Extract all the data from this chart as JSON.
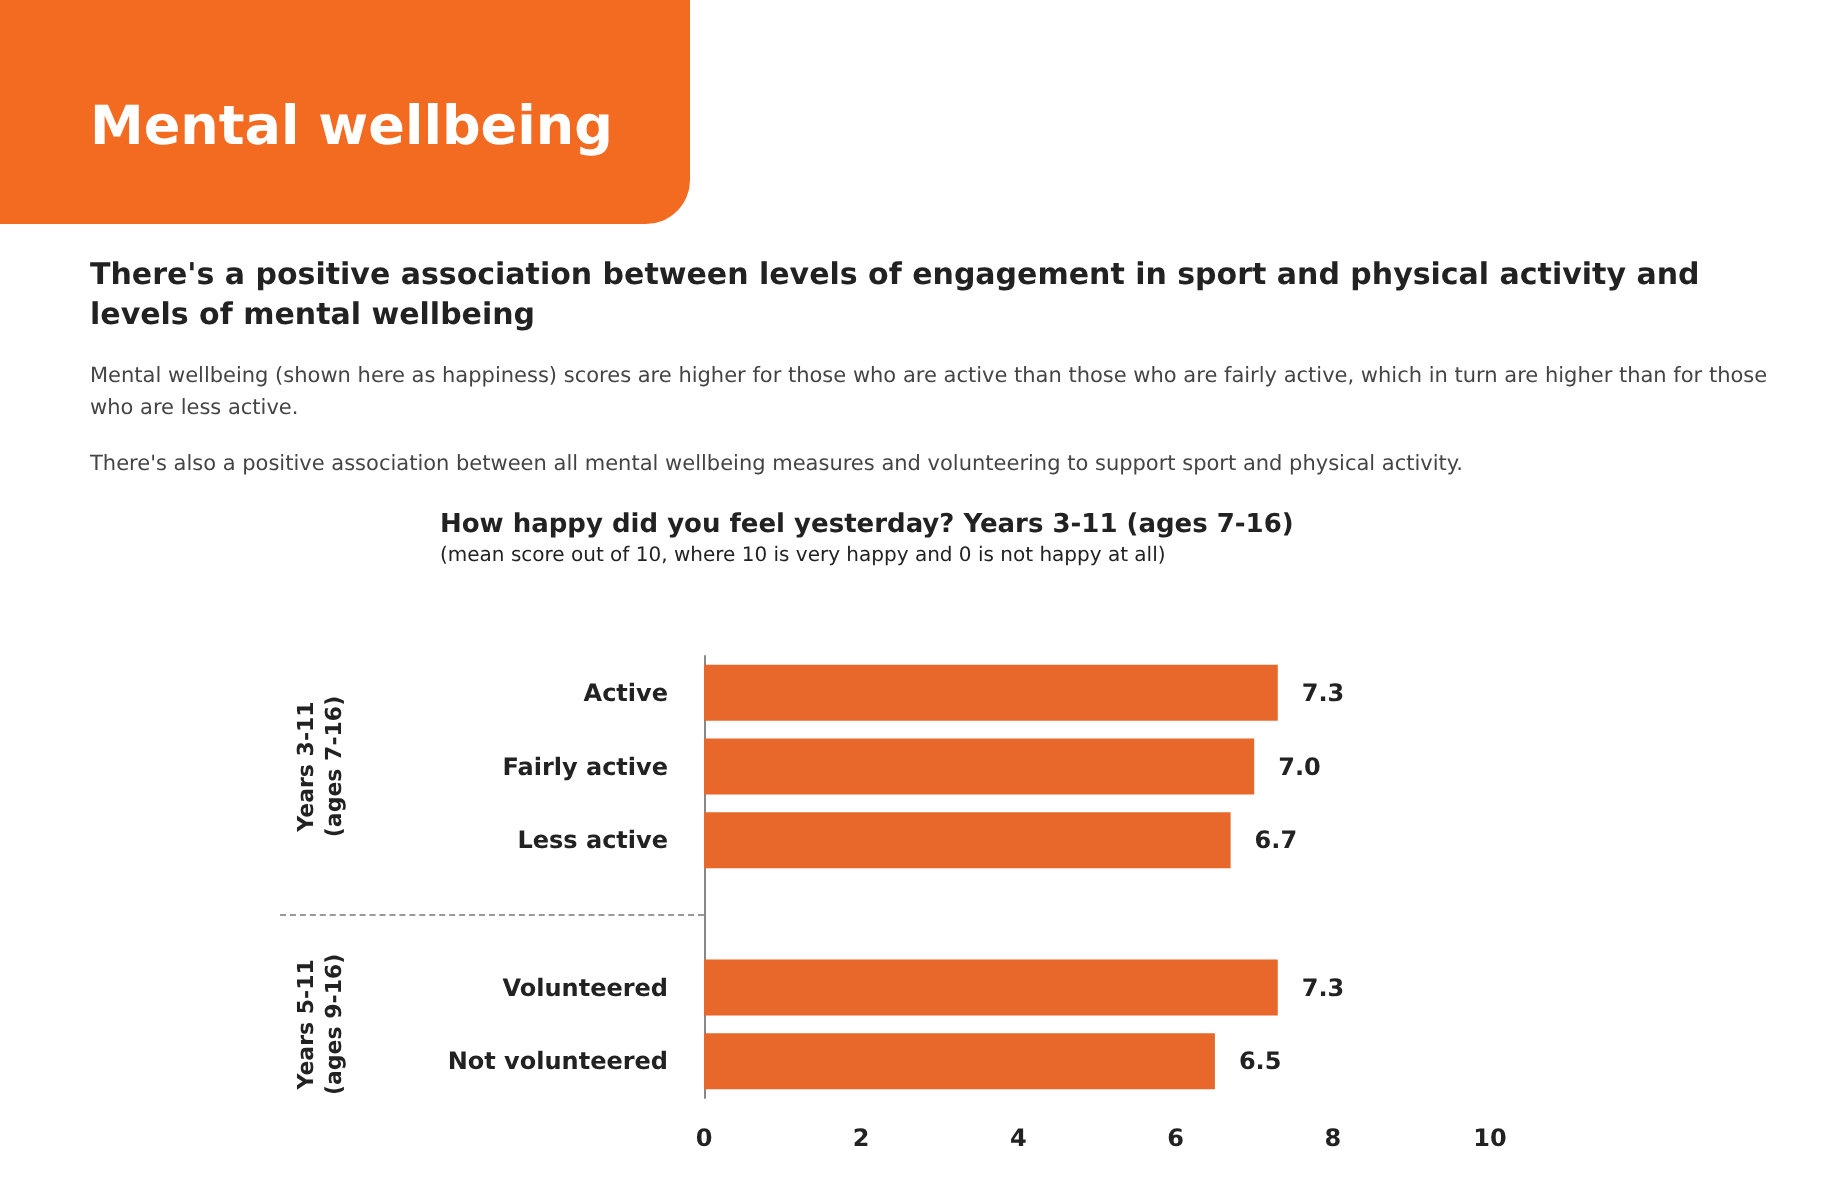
{
  "chart_data": {
    "type": "bar",
    "orientation": "horizontal",
    "title": "How happy did you feel yesterday? Years 3-11 (ages 7-16)",
    "subtitle": "(mean score out of 10, where 10 is very happy and 0 is not happy at all)",
    "annotations": [
      "Mental wellbeing",
      "There's a positive association between levels of engagement in sport and physical activity and levels of mental wellbeing",
      "Mental wellbeing (shown here as happiness) scores are higher for those who are active than those who are fairly active, which in turn are higher than for those who are less active.",
      "There's also a positive association between all mental wellbeing measures and volunteering to support sport and physical activity.",
      "Years 3-11\n(ages 7-16)",
      "Years 5-11\n(ages 9-16)"
    ],
    "categories": [
      "Active",
      "Fairly active",
      "Less active",
      null,
      "Volunteered",
      "Not volunteered"
    ],
    "values": [
      7.3,
      7.0,
      6.7,
      null,
      7.3,
      6.5
    ],
    "value_labels": [
      "7.3",
      "7.0",
      "6.7",
      null,
      "7.3",
      "6.5"
    ],
    "color": "#e8672a",
    "xlim": [
      0,
      10
    ],
    "xticks": [
      0,
      2,
      4,
      6,
      8,
      10
    ],
    "grid": false
  }
}
